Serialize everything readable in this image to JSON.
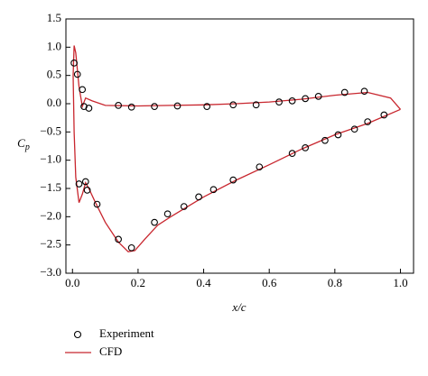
{
  "chart_data": {
    "type": "scatter-line",
    "xlabel": "x/c",
    "ylabel": "C",
    "ylabel_sub": "p",
    "xlim": [
      -0.02,
      1.04
    ],
    "ylim": [
      -3.0,
      1.5
    ],
    "xticks": [
      {
        "value": 0.0,
        "label": "0.0"
      },
      {
        "value": 0.2,
        "label": "0.2"
      },
      {
        "value": 0.4,
        "label": "0.4"
      },
      {
        "value": 0.6,
        "label": "0.6"
      },
      {
        "value": 0.8,
        "label": "0.8"
      },
      {
        "value": 1.0,
        "label": "1.0"
      }
    ],
    "yticks": [
      {
        "value": 1.5,
        "label": "1.5"
      },
      {
        "value": 1.0,
        "label": "1.0"
      },
      {
        "value": 0.5,
        "label": "0.5"
      },
      {
        "value": 0.0,
        "label": "0.0"
      },
      {
        "value": -0.5,
        "label": "−0.5"
      },
      {
        "value": -1.0,
        "label": "−1.0"
      },
      {
        "value": -1.5,
        "label": "−1.5"
      },
      {
        "value": -2.0,
        "label": "−2.0"
      },
      {
        "value": -2.5,
        "label": "−2.5"
      },
      {
        "value": -3.0,
        "label": "−3.0"
      }
    ],
    "series": [
      {
        "name": "Experiment",
        "kind": "scatter",
        "color": "#000000",
        "x": [
          0.005,
          0.015,
          0.03,
          0.035,
          0.05,
          0.14,
          0.18,
          0.25,
          0.32,
          0.41,
          0.49,
          0.56,
          0.63,
          0.67,
          0.71,
          0.75,
          0.83,
          0.89,
          0.02,
          0.04,
          0.045,
          0.075,
          0.14,
          0.18,
          0.25,
          0.29,
          0.34,
          0.385,
          0.43,
          0.49,
          0.57,
          0.67,
          0.71,
          0.77,
          0.81,
          0.86,
          0.9,
          0.95
        ],
        "values": [
          0.72,
          0.52,
          0.25,
          -0.05,
          -0.08,
          -0.03,
          -0.06,
          -0.05,
          -0.04,
          -0.05,
          -0.02,
          -0.02,
          0.03,
          0.05,
          0.09,
          0.13,
          0.2,
          0.22,
          -1.42,
          -1.38,
          -1.53,
          -1.78,
          -2.4,
          -2.55,
          -2.1,
          -1.95,
          -1.82,
          -1.65,
          -1.52,
          -1.35,
          -1.12,
          -0.88,
          -0.78,
          -0.65,
          -0.55,
          -0.45,
          -0.32,
          -0.2
        ]
      },
      {
        "name": "CFD",
        "kind": "line",
        "color": "#c8262e",
        "x": [
          1.0,
          0.97,
          0.9,
          0.8,
          0.7,
          0.6,
          0.5,
          0.4,
          0.3,
          0.2,
          0.1,
          0.06,
          0.04,
          0.03,
          0.02,
          0.01,
          0.005,
          0.002,
          0.005,
          0.01,
          0.02,
          0.03,
          0.04,
          0.05,
          0.07,
          0.1,
          0.14,
          0.17,
          0.19,
          0.22,
          0.26,
          0.3,
          0.4,
          0.5,
          0.6,
          0.7,
          0.8,
          0.9,
          1.0
        ],
        "values": [
          -0.1,
          0.1,
          0.2,
          0.15,
          0.08,
          0.03,
          0.0,
          -0.02,
          -0.03,
          -0.04,
          -0.03,
          0.05,
          0.1,
          -0.05,
          0.3,
          0.9,
          1.03,
          0.5,
          -0.5,
          -1.3,
          -1.75,
          -1.6,
          -1.4,
          -1.5,
          -1.75,
          -2.1,
          -2.45,
          -2.62,
          -2.6,
          -2.4,
          -2.15,
          -2.0,
          -1.65,
          -1.35,
          -1.08,
          -0.8,
          -0.55,
          -0.35,
          -0.1
        ]
      }
    ]
  }
}
